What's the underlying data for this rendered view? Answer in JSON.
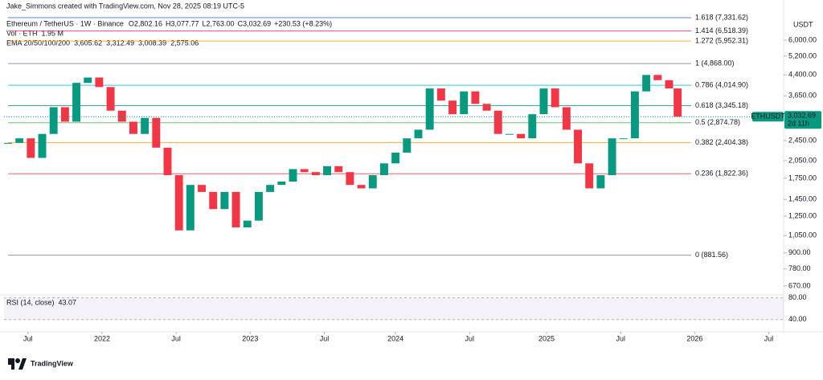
{
  "header": {
    "credit": "Jake_Simmons created with TradingView.com, Nov 28, 2025 08:19 UTC-5",
    "symbol": "Ethereum / TetherUS · 1W · Binance",
    "ohlc": [
      {
        "k": "O",
        "v": "2,802.16"
      },
      {
        "k": "H",
        "v": "3,077.77"
      },
      {
        "k": "L",
        "v": "2,763.00"
      },
      {
        "k": "C",
        "v": "3,032.69"
      }
    ],
    "change": "+230.53 (+8.23%)",
    "volume_label": "Vol · ETH",
    "volume_value": "1.95 M",
    "ema_label": "EMA 20/50/100/200",
    "ema_values": [
      {
        "text": "3,605.62",
        "color": "#f23645"
      },
      {
        "text": "3,312.49",
        "color": "#ff9800"
      },
      {
        "text": "3,008.39",
        "color": "#00bcd4"
      },
      {
        "text": "2,575.06",
        "color": "#2962ff"
      }
    ]
  },
  "chart_data": {
    "type": "candlestick",
    "x": [
      0,
      4,
      8,
      12,
      16,
      20,
      24,
      28,
      32,
      36,
      40,
      44,
      48,
      52,
      56,
      60,
      64,
      68,
      72,
      76,
      80,
      84,
      88,
      92,
      96,
      100,
      104,
      108,
      112,
      116,
      120,
      124,
      128,
      132,
      136,
      140,
      144,
      148,
      152,
      156,
      160,
      164,
      168,
      172,
      176,
      180,
      184,
      188,
      192,
      196,
      200,
      204,
      208,
      212,
      216,
      220,
      224,
      228,
      232,
      235
    ],
    "values": [
      2400,
      2500,
      2100,
      2600,
      3300,
      2900,
      4100,
      4300,
      3950,
      3200,
      2900,
      2600,
      3000,
      2300,
      1800,
      1100,
      1650,
      1550,
      1330,
      1550,
      1130,
      1200,
      1550,
      1650,
      1700,
      1900,
      1850,
      1800,
      1950,
      1850,
      1650,
      1600,
      1800,
      2000,
      2200,
      2500,
      2700,
      3900,
      3500,
      3100,
      3800,
      3400,
      3200,
      2600,
      2600,
      2500,
      3100,
      3900,
      3300,
      2700,
      2000,
      1600,
      1800,
      2500,
      2500,
      3800,
      4400,
      4200,
      3900,
      3032.69
    ],
    "up_color": "#089981",
    "down_color": "#f23645",
    "xlim": [
      -1.4,
      272.2
    ],
    "xticks": [
      {
        "value": 7,
        "label": "Jul"
      },
      {
        "value": 33,
        "label": "2022"
      },
      {
        "value": 59,
        "label": "Jul"
      },
      {
        "value": 85,
        "label": "2023"
      },
      {
        "value": 111,
        "label": "Jul"
      },
      {
        "value": 136,
        "label": "2024"
      },
      {
        "value": 162,
        "label": "Jul"
      },
      {
        "value": 189,
        "label": "2025"
      },
      {
        "value": 215,
        "label": "Jul"
      },
      {
        "value": 241,
        "label": "2026"
      },
      {
        "value": 267,
        "label": "Jul"
      }
    ],
    "ylim": [
      628,
      7710
    ],
    "log_scale": true,
    "yticks": [
      {
        "value": 6000,
        "label": "6,000.00"
      },
      {
        "value": 5200,
        "label": "5,200.00"
      },
      {
        "value": 4400,
        "label": "4,400.00"
      },
      {
        "value": 3650,
        "label": "3,650.00"
      },
      {
        "value": 2450,
        "label": "2,450.00"
      },
      {
        "value": 2050,
        "label": "2,050.00"
      },
      {
        "value": 1750,
        "label": "1,750.00"
      },
      {
        "value": 1450,
        "label": "1,450.00"
      },
      {
        "value": 1250,
        "label": "1,250.00"
      },
      {
        "value": 1050,
        "label": "1,050.00"
      },
      {
        "value": 900,
        "label": "900.00"
      },
      {
        "value": 780,
        "label": "780.00"
      },
      {
        "value": 670,
        "label": "670.00"
      }
    ],
    "axis_unit": "USDT",
    "fib_levels": [
      {
        "value": 7331.62,
        "label": "1.618 (7,331.62)",
        "color": "#2962ff"
      },
      {
        "value": 6518.39,
        "label": "1.414 (6,518.39)",
        "color": "#e91e63"
      },
      {
        "value": 5952.31,
        "label": "1.272 (5,952.31)",
        "color": "#ff9800"
      },
      {
        "value": 4868,
        "label": "1 (4,868.00)",
        "color": "#787b86"
      },
      {
        "value": 4014.9,
        "label": "0.786 (4,014.90)",
        "color": "#00bcd4"
      },
      {
        "value": 3345.18,
        "label": "0.618 (3,345.18)",
        "color": "#089981"
      },
      {
        "value": 2874.78,
        "label": "0.5 (2,874.78)",
        "color": "#4caf50"
      },
      {
        "value": 2404.38,
        "label": "0.382 (2,404.38)",
        "color": "#ff9800"
      },
      {
        "value": 1822.36,
        "label": "0.236 (1,822.36)",
        "color": "#f23645"
      },
      {
        "value": 881.56,
        "label": "0 (881.56)",
        "color": "#787b86"
      }
    ],
    "price_tag": {
      "symbol": "ETHUSDT",
      "price": "3,032.69",
      "countdown": "2d 11h",
      "color": "#089981"
    }
  },
  "rsi": {
    "label": "RSI (14, close)",
    "value": "43.07",
    "ylim": [
      22,
      84
    ],
    "yticks": [
      {
        "value": 80,
        "label": "80.00"
      },
      {
        "value": 40,
        "label": "40.00"
      }
    ]
  },
  "footer": {
    "brand": "TradingView"
  }
}
